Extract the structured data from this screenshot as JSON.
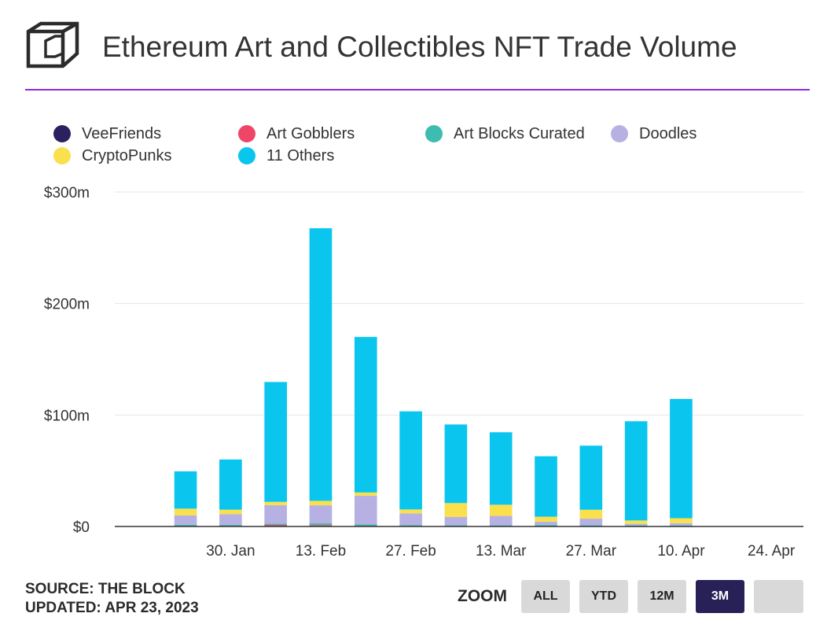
{
  "header": {
    "title": "Ethereum Art and Collectibles NFT Trade Volume",
    "accent_color": "#8e2bd6"
  },
  "legend": [
    {
      "name": "VeeFriends",
      "color": "#2a215e"
    },
    {
      "name": "Art Gobblers",
      "color": "#ef4668"
    },
    {
      "name": "Art Blocks Curated",
      "color": "#3dbdaf"
    },
    {
      "name": "Doodles",
      "color": "#b7b1e3"
    },
    {
      "name": "CryptoPunks",
      "color": "#fae04d"
    },
    {
      "name": "11 Others",
      "color": "#0ac6ef"
    }
  ],
  "footer": {
    "source": "SOURCE: THE BLOCK",
    "updated": "UPDATED: APR 23, 2023"
  },
  "zoom": {
    "label": "ZOOM",
    "buttons": [
      {
        "label": "ALL",
        "active": false
      },
      {
        "label": "YTD",
        "active": false
      },
      {
        "label": "12M",
        "active": false
      },
      {
        "label": "3M",
        "active": true
      },
      {
        "label": "",
        "active": false
      }
    ]
  },
  "chart_data": {
    "type": "bar",
    "stacked": true,
    "categories": [
      "2023-01-23",
      "2023-01-30",
      "2023-02-06",
      "2023-02-13",
      "2023-02-20",
      "2023-02-27",
      "2023-03-06",
      "2023-03-13",
      "2023-03-20",
      "2023-03-27",
      "2023-04-03",
      "2023-04-10"
    ],
    "x_tick_labels": [
      "30. Jan",
      "13. Feb",
      "27. Feb",
      "13. Mar",
      "27. Mar",
      "10. Apr",
      "24. Apr"
    ],
    "x_tick_dates": [
      "2023-01-30",
      "2023-02-13",
      "2023-02-27",
      "2023-03-13",
      "2023-03-27",
      "2023-04-10",
      "2023-04-24"
    ],
    "x_range": [
      "2023-01-12",
      "2023-04-29"
    ],
    "y_tick_labels": [
      "$0",
      "$100m",
      "$200m",
      "$300m"
    ],
    "y_ticks": [
      0,
      100,
      200,
      300
    ],
    "ylim": [
      0,
      300
    ],
    "y_unit": "$m",
    "grid": true,
    "legend_position": "top",
    "series": [
      {
        "name": "VeeFriends",
        "color": "#2a215e",
        "values": [
          0.3,
          0.3,
          0.4,
          0.5,
          0.4,
          0.3,
          0.2,
          0.2,
          0.2,
          0.2,
          0.2,
          0.2
        ]
      },
      {
        "name": "Art Gobblers",
        "color": "#ef4668",
        "values": [
          0.2,
          0.3,
          1.0,
          0.8,
          0.3,
          0.2,
          0.1,
          0.1,
          0.1,
          0.1,
          0.1,
          0.1
        ]
      },
      {
        "name": "Art Blocks Curated",
        "color": "#3dbdaf",
        "values": [
          1.0,
          1.0,
          1.2,
          1.5,
          1.3,
          0.8,
          0.7,
          0.7,
          1.0,
          0.7,
          0.6,
          0.6
        ]
      },
      {
        "name": "Doodles",
        "color": "#b7b1e3",
        "values": [
          8.5,
          9.5,
          16.5,
          16.2,
          25.5,
          10.5,
          7.5,
          8.5,
          3.0,
          6.0,
          1.5,
          2.0
        ]
      },
      {
        "name": "CryptoPunks",
        "color": "#fae04d",
        "values": [
          6.0,
          4.0,
          3.0,
          4.0,
          3.0,
          3.5,
          12.5,
          10.0,
          4.5,
          8.0,
          3.0,
          4.5
        ]
      },
      {
        "name": "11 Others",
        "color": "#0ac6ef",
        "values": [
          33.5,
          45.0,
          107.5,
          244.5,
          139.5,
          88.0,
          70.5,
          65.0,
          54.2,
          57.5,
          89.0,
          107.0
        ]
      }
    ]
  }
}
